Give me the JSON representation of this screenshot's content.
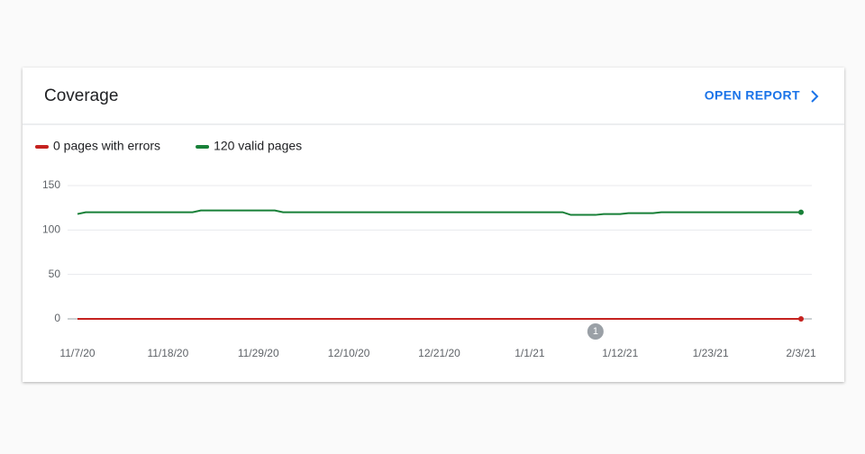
{
  "header": {
    "title": "Coverage",
    "action": "OPEN REPORT"
  },
  "chart_data": {
    "type": "line",
    "x": [
      "2020-11-07",
      "2020-11-08",
      "2020-11-21",
      "2020-11-22",
      "2020-12-01",
      "2020-12-02",
      "2021-01-05",
      "2021-01-06",
      "2021-01-09",
      "2021-01-10",
      "2021-01-12",
      "2021-01-13",
      "2021-01-16",
      "2021-01-17",
      "2021-02-03"
    ],
    "series": [
      {
        "name": "0 pages with errors",
        "color": "#c5221f",
        "values": [
          0,
          0,
          0,
          0,
          0,
          0,
          0,
          0,
          0,
          0,
          0,
          0,
          0,
          0,
          0
        ]
      },
      {
        "name": "120 valid pages",
        "color": "#188038",
        "values": [
          118,
          120,
          120,
          122,
          122,
          120,
          120,
          117,
          117,
          118,
          118,
          119,
          119,
          120,
          120
        ]
      }
    ],
    "xlim": [
      "2020-11-07",
      "2021-02-03"
    ],
    "xticks": [
      {
        "value": "2020-11-07",
        "label": "11/7/20"
      },
      {
        "value": "2020-11-18",
        "label": "11/18/20"
      },
      {
        "value": "2020-11-29",
        "label": "11/29/20"
      },
      {
        "value": "2020-12-10",
        "label": "12/10/20"
      },
      {
        "value": "2020-12-21",
        "label": "12/21/20"
      },
      {
        "value": "2021-01-01",
        "label": "1/1/21"
      },
      {
        "value": "2021-01-12",
        "label": "1/12/21"
      },
      {
        "value": "2021-01-23",
        "label": "1/23/21"
      },
      {
        "value": "2021-02-03",
        "label": "2/3/21"
      }
    ],
    "ylim": [
      0,
      150
    ],
    "yticks": [
      0,
      50,
      100,
      150
    ],
    "grid": true,
    "annotations": [
      {
        "x": "2021-01-09",
        "label": "1"
      }
    ]
  }
}
